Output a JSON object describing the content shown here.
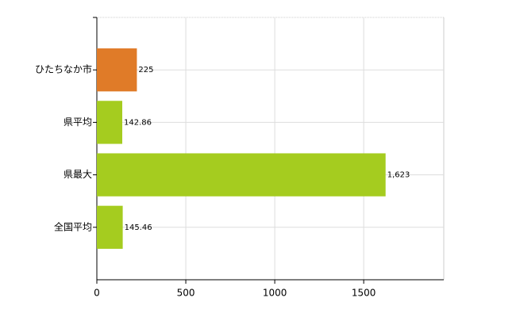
{
  "chart_data": {
    "type": "hbar",
    "categories": [
      "ひたちなか市",
      "県平均",
      "県最大",
      "全国平均"
    ],
    "values": [
      225,
      142.86,
      1623,
      145.46
    ],
    "value_labels": [
      "225",
      "142.86",
      "1,623",
      "145.46"
    ],
    "colors": [
      "#e07b28",
      "#a5cc1f",
      "#a5cc1f",
      "#a5cc1f"
    ],
    "xlim": [
      0,
      1950
    ],
    "xticks": [
      0,
      500,
      1000,
      1500
    ],
    "grid": true
  }
}
